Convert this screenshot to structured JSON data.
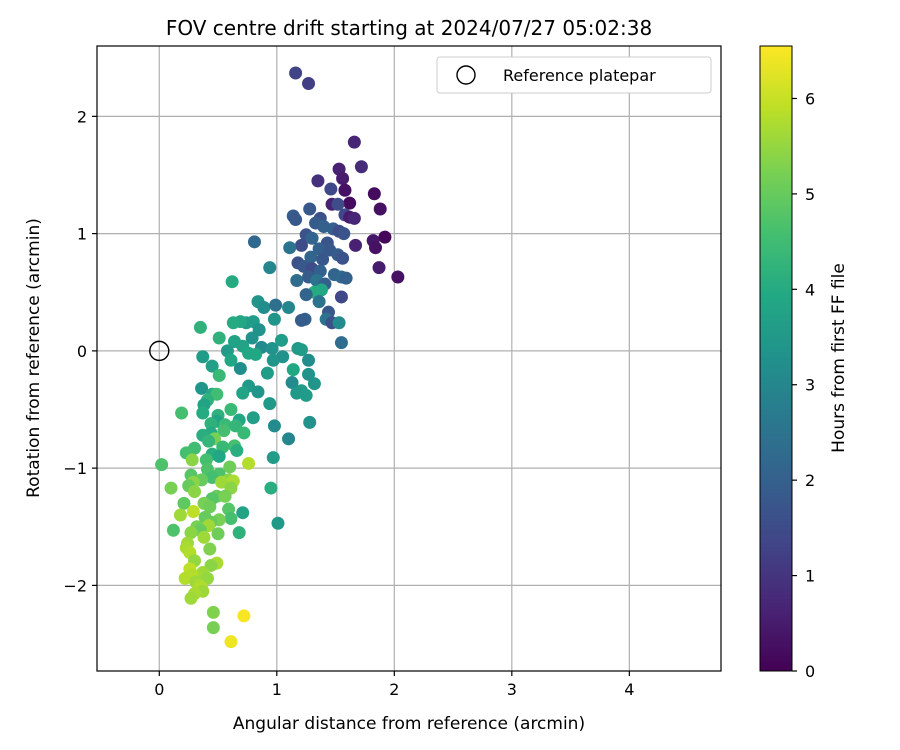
{
  "chart_data": {
    "type": "scatter",
    "title": "FOV centre drift starting at 2024/07/27 05:02:38",
    "xlabel": "Angular distance from reference (arcmin)",
    "ylabel": "Rotation from reference (arcmin)",
    "xlim": [
      -0.53,
      4.78
    ],
    "ylim": [
      -2.73,
      2.6
    ],
    "xticks": [
      0,
      1,
      2,
      3,
      4
    ],
    "xtick_labels": [
      "0",
      "1",
      "2",
      "3",
      "4"
    ],
    "yticks": [
      -2,
      -1,
      0,
      1,
      2
    ],
    "ytick_labels": [
      "−2",
      "−1",
      "0",
      "1",
      "2"
    ],
    "grid": true,
    "legend": {
      "placement": "top-right",
      "label": "Reference platepar"
    },
    "reference_point": {
      "x": 0,
      "y": 0
    },
    "colorbar": {
      "label": "Hours from first FF file",
      "range": [
        0,
        6.55
      ],
      "ticks": [
        0,
        1,
        2,
        3,
        4,
        5,
        6
      ],
      "tick_labels": [
        "0",
        "1",
        "2",
        "3",
        "4",
        "5",
        "6"
      ],
      "colormap": "viridis"
    },
    "points": [
      [
        1.16,
        2.37,
        1.3
      ],
      [
        1.27,
        2.28,
        1.2
      ],
      [
        1.66,
        1.78,
        0.7
      ],
      [
        1.72,
        1.57,
        0.8
      ],
      [
        1.53,
        1.55,
        0.6
      ],
      [
        1.56,
        1.47,
        0.5
      ],
      [
        1.35,
        1.45,
        0.9
      ],
      [
        1.58,
        1.37,
        0.3
      ],
      [
        1.46,
        1.38,
        1.4
      ],
      [
        1.83,
        1.34,
        0.2
      ],
      [
        1.62,
        1.26,
        0.2
      ],
      [
        1.47,
        1.25,
        0.6
      ],
      [
        1.52,
        1.25,
        1.5
      ],
      [
        1.28,
        1.21,
        1.8
      ],
      [
        1.88,
        1.21,
        0.3
      ],
      [
        1.14,
        1.15,
        1.9
      ],
      [
        1.16,
        1.12,
        1.8
      ],
      [
        1.58,
        1.16,
        1.4
      ],
      [
        1.62,
        1.14,
        0.5
      ],
      [
        1.66,
        1.13,
        0.7
      ],
      [
        1.37,
        1.13,
        1.6
      ],
      [
        1.33,
        1.09,
        1.9
      ],
      [
        1.4,
        1.06,
        2.0
      ],
      [
        1.48,
        1.04,
        2.0
      ],
      [
        1.53,
        1.02,
        1.5
      ],
      [
        1.57,
        1.0,
        1.7
      ],
      [
        1.25,
        0.99,
        1.7
      ],
      [
        1.3,
        0.96,
        2.1
      ],
      [
        1.43,
        0.92,
        1.7
      ],
      [
        1.92,
        0.97,
        0.1
      ],
      [
        1.82,
        0.94,
        0.4
      ],
      [
        1.84,
        0.88,
        0.3
      ],
      [
        1.67,
        0.9,
        0.6
      ],
      [
        1.21,
        0.9,
        1.5
      ],
      [
        1.11,
        0.88,
        2.5
      ],
      [
        1.36,
        0.87,
        2.0
      ],
      [
        1.45,
        0.86,
        1.8
      ],
      [
        1.52,
        0.82,
        1.9
      ],
      [
        0.81,
        0.93,
        2.2
      ],
      [
        1.29,
        0.8,
        2.1
      ],
      [
        1.56,
        0.79,
        1.7
      ],
      [
        1.39,
        0.78,
        1.8
      ],
      [
        1.18,
        0.75,
        1.6
      ],
      [
        1.23,
        0.72,
        1.8
      ],
      [
        1.3,
        0.7,
        1.5
      ],
      [
        1.37,
        0.68,
        2.0
      ],
      [
        0.94,
        0.71,
        3.0
      ],
      [
        1.87,
        0.71,
        0.5
      ],
      [
        1.49,
        0.65,
        2.1
      ],
      [
        1.55,
        0.63,
        2.2
      ],
      [
        1.59,
        0.62,
        2.0
      ],
      [
        2.03,
        0.63,
        0.3
      ],
      [
        1.27,
        0.63,
        1.9
      ],
      [
        1.34,
        0.6,
        2.5
      ],
      [
        1.17,
        0.6,
        2.3
      ],
      [
        1.41,
        0.57,
        2.0
      ],
      [
        0.62,
        0.59,
        4.0
      ],
      [
        1.38,
        0.52,
        3.9
      ],
      [
        1.32,
        0.5,
        4.0
      ],
      [
        1.25,
        0.48,
        2.1
      ],
      [
        1.55,
        0.46,
        1.4
      ],
      [
        1.36,
        0.42,
        2.5
      ],
      [
        0.84,
        0.42,
        3.4
      ],
      [
        0.89,
        0.37,
        3.2
      ],
      [
        0.99,
        0.39,
        2.4
      ],
      [
        1.1,
        0.37,
        3.0
      ],
      [
        1.44,
        0.33,
        1.8
      ],
      [
        1.42,
        0.27,
        2.5
      ],
      [
        1.24,
        0.27,
        2.0
      ],
      [
        1.21,
        0.26,
        1.9
      ],
      [
        1.47,
        0.24,
        1.6
      ],
      [
        1.53,
        0.24,
        3.1
      ],
      [
        0.74,
        0.24,
        3.6
      ],
      [
        0.69,
        0.25,
        3.9
      ],
      [
        0.8,
        0.25,
        3.6
      ],
      [
        0.63,
        0.24,
        4.0
      ],
      [
        0.98,
        0.27,
        3.4
      ],
      [
        0.35,
        0.2,
        4.2
      ],
      [
        0.85,
        0.18,
        3.3
      ],
      [
        0.51,
        0.11,
        4.2
      ],
      [
        0.79,
        0.11,
        3.3
      ],
      [
        1.04,
        0.09,
        3.6
      ],
      [
        1.55,
        0.07,
        2.3
      ],
      [
        0.64,
        0.08,
        3.8
      ],
      [
        0.71,
        0.04,
        3.8
      ],
      [
        0.87,
        0.03,
        3.1
      ],
      [
        0.96,
        0.02,
        3.3
      ],
      [
        1.18,
        0.02,
        3.5
      ],
      [
        1.21,
        0.01,
        3.6
      ],
      [
        0.58,
        0.0,
        3.6
      ],
      [
        0.76,
        -0.02,
        3.9
      ],
      [
        0.82,
        -0.03,
        3.9
      ],
      [
        1.05,
        -0.05,
        3.3
      ],
      [
        0.37,
        -0.05,
        3.6
      ],
      [
        0.97,
        -0.08,
        3.4
      ],
      [
        1.27,
        -0.08,
        3.2
      ],
      [
        0.61,
        -0.08,
        3.9
      ],
      [
        0.45,
        -0.13,
        3.7
      ],
      [
        0.69,
        -0.15,
        3.2
      ],
      [
        1.14,
        -0.16,
        3.9
      ],
      [
        0.92,
        -0.19,
        3.6
      ],
      [
        1.27,
        -0.2,
        3.3
      ],
      [
        0.51,
        -0.21,
        4.4
      ],
      [
        1.13,
        -0.27,
        3.1
      ],
      [
        1.32,
        -0.28,
        3.4
      ],
      [
        0.76,
        -0.3,
        3.5
      ],
      [
        1.21,
        -0.34,
        3.6
      ],
      [
        0.36,
        -0.32,
        3.4
      ],
      [
        0.84,
        -0.35,
        3.4
      ],
      [
        1.17,
        -0.36,
        3.5
      ],
      [
        0.71,
        -0.36,
        3.8
      ],
      [
        1.25,
        -0.38,
        3.6
      ],
      [
        0.45,
        -0.37,
        4.0
      ],
      [
        0.49,
        -0.37,
        4.5
      ],
      [
        0.41,
        -0.42,
        4.2
      ],
      [
        0.94,
        -0.45,
        3.5
      ],
      [
        0.38,
        -0.46,
        3.8
      ],
      [
        0.61,
        -0.5,
        4.4
      ],
      [
        0.19,
        -0.53,
        4.6
      ],
      [
        0.37,
        -0.53,
        4.0
      ],
      [
        0.5,
        -0.55,
        4.2
      ],
      [
        0.8,
        -0.57,
        3.7
      ],
      [
        0.68,
        -0.59,
        3.9
      ],
      [
        0.49,
        -0.6,
        3.8
      ],
      [
        1.28,
        -0.61,
        3.3
      ],
      [
        0.44,
        -0.62,
        4.2
      ],
      [
        0.56,
        -0.63,
        4.4
      ],
      [
        0.98,
        -0.64,
        3.1
      ],
      [
        0.65,
        -0.64,
        4.3
      ],
      [
        0.55,
        -0.68,
        4.6
      ],
      [
        0.44,
        -0.7,
        4.0
      ],
      [
        0.72,
        -0.7,
        4.4
      ],
      [
        0.37,
        -0.72,
        4.1
      ],
      [
        1.1,
        -0.75,
        3.0
      ],
      [
        0.47,
        -0.75,
        5.2
      ],
      [
        0.42,
        -0.77,
        4.3
      ],
      [
        0.64,
        -0.81,
        4.6
      ],
      [
        0.54,
        -0.82,
        4.4
      ],
      [
        0.3,
        -0.83,
        4.5
      ],
      [
        0.66,
        -0.85,
        4.1
      ],
      [
        0.23,
        -0.87,
        4.6
      ],
      [
        0.45,
        -0.88,
        4.1
      ],
      [
        0.51,
        -0.9,
        3.9
      ],
      [
        0.97,
        -0.91,
        3.6
      ],
      [
        0.4,
        -0.93,
        4.6
      ],
      [
        0.28,
        -0.93,
        5.4
      ],
      [
        0.02,
        -0.97,
        4.7
      ],
      [
        0.76,
        -0.96,
        5.8
      ],
      [
        0.6,
        -0.99,
        5.1
      ],
      [
        0.41,
        -1.01,
        4.7
      ],
      [
        0.51,
        -1.05,
        4.7
      ],
      [
        0.27,
        -1.06,
        4.8
      ],
      [
        0.45,
        -1.08,
        4.6
      ],
      [
        0.36,
        -1.1,
        5.0
      ],
      [
        0.59,
        -1.1,
        5.4
      ],
      [
        0.63,
        -1.11,
        5.7
      ],
      [
        0.53,
        -1.12,
        5.6
      ],
      [
        0.29,
        -1.12,
        5.4
      ],
      [
        0.25,
        -1.15,
        5.0
      ],
      [
        0.61,
        -1.17,
        5.4
      ],
      [
        0.1,
        -1.17,
        5.2
      ],
      [
        0.95,
        -1.17,
        4.1
      ],
      [
        0.3,
        -1.2,
        5.4
      ],
      [
        0.49,
        -1.24,
        5.0
      ],
      [
        0.56,
        -1.24,
        5.2
      ],
      [
        0.45,
        -1.26,
        4.8
      ],
      [
        0.38,
        -1.3,
        5.2
      ],
      [
        0.21,
        -1.3,
        4.9
      ],
      [
        0.43,
        -1.33,
        5.1
      ],
      [
        0.59,
        -1.35,
        4.8
      ],
      [
        0.29,
        -1.37,
        5.9
      ],
      [
        0.71,
        -1.38,
        3.8
      ],
      [
        0.18,
        -1.4,
        5.6
      ],
      [
        0.39,
        -1.42,
        5.0
      ],
      [
        0.61,
        -1.43,
        4.6
      ],
      [
        0.51,
        -1.44,
        5.2
      ],
      [
        0.44,
        -1.46,
        5.0
      ],
      [
        1.01,
        -1.47,
        3.5
      ],
      [
        0.42,
        -1.49,
        5.6
      ],
      [
        0.32,
        -1.5,
        5.2
      ],
      [
        0.35,
        -1.53,
        5.0
      ],
      [
        0.12,
        -1.53,
        4.7
      ],
      [
        0.27,
        -1.55,
        5.4
      ],
      [
        0.5,
        -1.56,
        5.1
      ],
      [
        0.68,
        -1.55,
        4.2
      ],
      [
        0.38,
        -1.59,
        5.6
      ],
      [
        0.24,
        -1.64,
        5.6
      ],
      [
        0.23,
        -1.68,
        5.7
      ],
      [
        0.43,
        -1.69,
        5.3
      ],
      [
        0.26,
        -1.72,
        5.8
      ],
      [
        0.3,
        -1.79,
        5.5
      ],
      [
        0.49,
        -1.81,
        5.7
      ],
      [
        0.44,
        -1.83,
        5.4
      ],
      [
        0.26,
        -1.86,
        5.9
      ],
      [
        0.37,
        -1.89,
        5.6
      ],
      [
        0.28,
        -1.91,
        5.8
      ],
      [
        0.41,
        -1.94,
        5.5
      ],
      [
        0.22,
        -1.94,
        5.8
      ],
      [
        0.31,
        -1.97,
        5.6
      ],
      [
        0.34,
        -2.0,
        5.7
      ],
      [
        0.36,
        -2.02,
        5.8
      ],
      [
        0.37,
        -2.05,
        5.6
      ],
      [
        0.3,
        -2.07,
        5.7
      ],
      [
        0.27,
        -2.11,
        5.6
      ],
      [
        0.46,
        -2.23,
        5.3
      ],
      [
        0.72,
        -2.26,
        6.5
      ],
      [
        0.46,
        -2.36,
        5.2
      ],
      [
        0.61,
        -2.48,
        6.4
      ]
    ]
  }
}
